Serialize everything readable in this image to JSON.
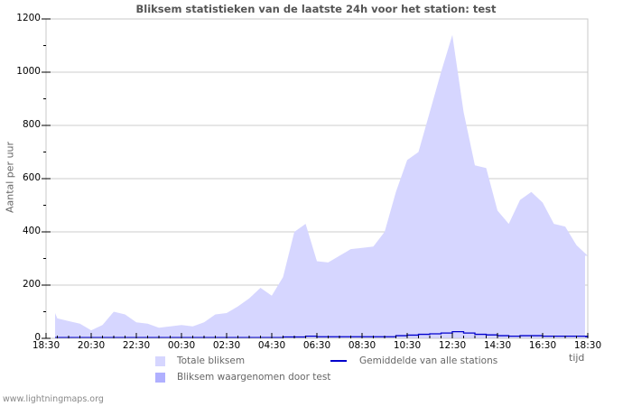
{
  "title": "Bliksem statistieken van de laatste 24h voor het station: test",
  "footer": "www.lightningmaps.org",
  "colors": {
    "total_fill": "#d6d6ff",
    "station_fill": "#b0b0ff",
    "average_line": "#0000cc",
    "grid": "#cccccc",
    "frame": "#c8c8c8"
  },
  "legend": [
    {
      "label": "Totale bliksem",
      "type": "area",
      "color": "#d6d6ff"
    },
    {
      "label": "Gemiddelde van alle stations",
      "type": "line",
      "color": "#0000cc"
    },
    {
      "label": "Bliksem waargenomen door test",
      "type": "area",
      "color": "#b0b0ff"
    }
  ],
  "chart_data": {
    "type": "area",
    "title": "Bliksem statistieken van de laatste 24h voor het station: test",
    "xlabel": "tijd",
    "ylabel": "Aantal per uur",
    "ylim": [
      0,
      1200
    ],
    "yticks": [
      0,
      200,
      400,
      600,
      800,
      1000,
      1200
    ],
    "xticks": [
      "18:30",
      "20:30",
      "22:30",
      "00:30",
      "02:30",
      "04:30",
      "06:30",
      "08:30",
      "10:30",
      "12:30",
      "14:30",
      "16:30",
      "18:30"
    ],
    "grid": true,
    "x_hours_from_start": [
      0,
      0.5,
      1,
      1.5,
      2,
      2.5,
      3,
      3.5,
      4,
      4.5,
      5,
      5.5,
      6,
      6.5,
      7,
      7.5,
      8,
      8.5,
      9,
      9.5,
      10,
      10.5,
      11,
      11.5,
      12,
      12.5,
      13,
      13.5,
      14,
      14.5,
      15,
      15.5,
      16,
      16.5,
      17,
      17.5,
      18,
      18.5,
      19,
      19.5,
      20,
      20.5,
      21,
      21.5,
      22,
      22.5,
      23,
      23.5,
      24
    ],
    "series": [
      {
        "name": "Totale bliksem",
        "values": [
          95,
          75,
          65,
          55,
          30,
          50,
          100,
          90,
          60,
          55,
          40,
          45,
          50,
          45,
          60,
          90,
          95,
          120,
          150,
          190,
          160,
          230,
          400,
          430,
          290,
          285,
          310,
          335,
          340,
          345,
          400,
          550,
          670,
          700,
          850,
          1000,
          1140,
          850,
          650,
          640,
          480,
          430,
          520,
          550,
          510,
          430,
          420,
          350,
          310
        ]
      },
      {
        "name": "Gemiddelde van alle stations",
        "values": [
          3,
          3,
          3,
          3,
          3,
          3,
          3,
          3,
          3,
          3,
          3,
          3,
          3,
          3,
          3,
          3,
          3,
          3,
          3,
          3,
          3,
          5,
          5,
          8,
          6,
          6,
          6,
          6,
          6,
          6,
          6,
          10,
          12,
          15,
          17,
          20,
          25,
          20,
          15,
          13,
          10,
          8,
          10,
          10,
          8,
          8,
          8,
          8,
          6
        ]
      },
      {
        "name": "Bliksem waargenomen door test",
        "values": [
          0,
          0,
          0,
          0,
          0,
          0,
          0,
          0,
          0,
          0,
          0,
          0,
          0,
          0,
          0,
          0,
          0,
          0,
          0,
          0,
          0,
          0,
          0,
          0,
          0,
          0,
          0,
          0,
          0,
          0,
          0,
          0,
          0,
          0,
          0,
          0,
          0,
          0,
          0,
          0,
          0,
          0,
          0,
          0,
          0,
          0,
          0,
          0,
          0
        ]
      }
    ],
    "legend_position": "bottom"
  }
}
